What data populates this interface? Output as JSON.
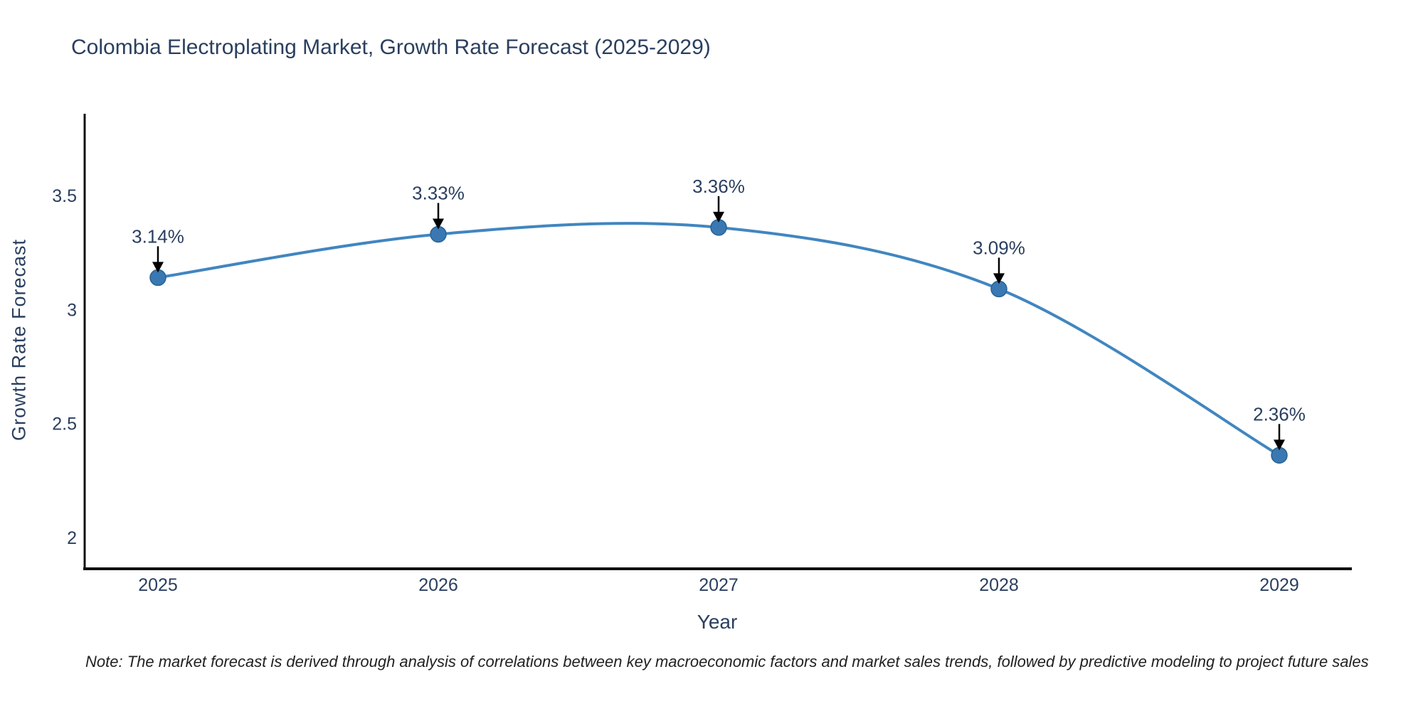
{
  "chart": {
    "title": "Colombia Electroplating Market, Growth Rate Forecast (2025-2029)",
    "xlabel": "Year",
    "ylabel": "Growth Rate Forecast",
    "note": "Note: The market forecast is derived through analysis of correlations between key macroeconomic factors and market sales trends, followed by predictive modeling to project future sales"
  },
  "chart_data": {
    "type": "line",
    "curve": "spline",
    "title": "Colombia Electroplating Market, Growth Rate Forecast (2025-2029)",
    "xlabel": "Year",
    "ylabel": "Growth Rate Forecast",
    "x": [
      2025,
      2026,
      2027,
      2028,
      2029
    ],
    "values": [
      3.14,
      3.33,
      3.36,
      3.09,
      2.36
    ],
    "point_labels": [
      "3.14%",
      "3.33%",
      "3.36%",
      "3.09%",
      "2.36%"
    ],
    "x_tick_labels": [
      "2025",
      "2026",
      "2027",
      "2028",
      "2029"
    ],
    "y_tick_labels": [
      "3.5",
      "3",
      "2.5",
      "2"
    ],
    "y_tick_values": [
      3.5,
      3,
      2.5,
      2
    ],
    "ylim": [
      1.86,
      3.86
    ],
    "grid": false,
    "legend": false,
    "line_color": "#4186c0",
    "marker_color": "#3a78b3",
    "marker_edge_color": "#2a628f",
    "axis_color": "#111111",
    "text_color": "#2a3f5f",
    "annotation_arrow_color": "#000000"
  }
}
